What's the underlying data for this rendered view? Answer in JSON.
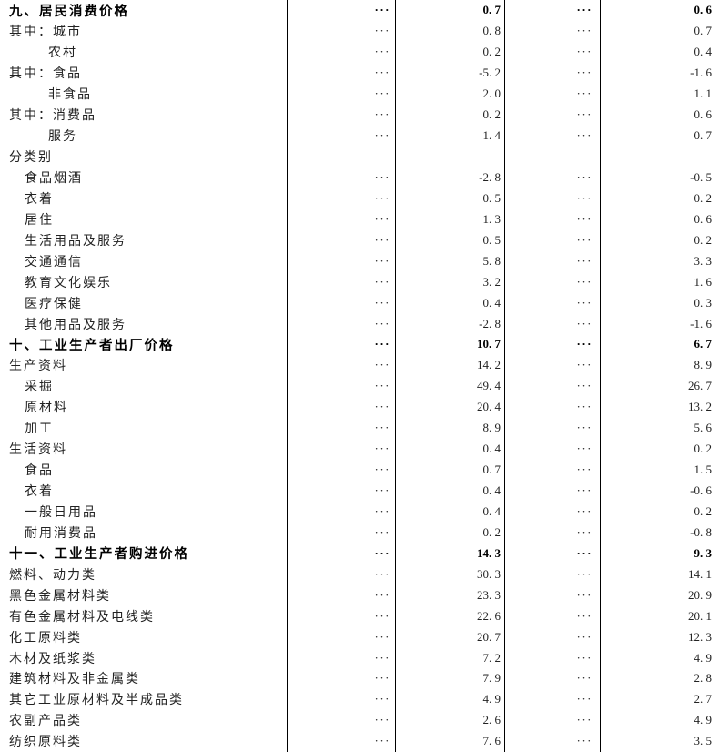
{
  "table": {
    "ellipsis": "···",
    "rows": [
      {
        "label": "九、居民消费价格",
        "level": 0,
        "bold": true,
        "dots": true,
        "v1": "0.7",
        "v2": "0.6"
      },
      {
        "label": "其中：城市",
        "level": 0,
        "bold": false,
        "dots": true,
        "v1": "0.8",
        "v2": "0.7"
      },
      {
        "label": "农村",
        "level": 2,
        "bold": false,
        "dots": true,
        "v1": "0.2",
        "v2": "0.4"
      },
      {
        "label": "其中：食品",
        "level": 0,
        "bold": false,
        "dots": true,
        "v1": "-5.2",
        "v2": "-1.6"
      },
      {
        "label": "非食品",
        "level": 2,
        "bold": false,
        "dots": true,
        "v1": "2.0",
        "v2": "1.1"
      },
      {
        "label": "其中：消费品",
        "level": 0,
        "bold": false,
        "dots": true,
        "v1": "0.2",
        "v2": "0.6"
      },
      {
        "label": "服务",
        "level": 2,
        "bold": false,
        "dots": true,
        "v1": "1.4",
        "v2": "0.7"
      },
      {
        "label": "分类别",
        "level": 0,
        "bold": false,
        "dots": false,
        "v1": null,
        "v2": null
      },
      {
        "label": "食品烟酒",
        "level": 1,
        "bold": false,
        "dots": true,
        "v1": "-2.8",
        "v2": "-0.5"
      },
      {
        "label": "衣着",
        "level": 1,
        "bold": false,
        "dots": true,
        "v1": "0.5",
        "v2": "0.2"
      },
      {
        "label": "居住",
        "level": 1,
        "bold": false,
        "dots": true,
        "v1": "1.3",
        "v2": "0.6"
      },
      {
        "label": "生活用品及服务",
        "level": 1,
        "bold": false,
        "dots": true,
        "v1": "0.5",
        "v2": "0.2"
      },
      {
        "label": "交通通信",
        "level": 1,
        "bold": false,
        "dots": true,
        "v1": "5.8",
        "v2": "3.3"
      },
      {
        "label": "教育文化娱乐",
        "level": 1,
        "bold": false,
        "dots": true,
        "v1": "3.2",
        "v2": "1.6"
      },
      {
        "label": "医疗保健",
        "level": 1,
        "bold": false,
        "dots": true,
        "v1": "0.4",
        "v2": "0.3"
      },
      {
        "label": "其他用品及服务",
        "level": 1,
        "bold": false,
        "dots": true,
        "v1": "-2.8",
        "v2": "-1.6"
      },
      {
        "label": "十、工业生产者出厂价格",
        "level": 0,
        "bold": true,
        "dots": true,
        "v1": "10.7",
        "v2": "6.7"
      },
      {
        "label": "生产资料",
        "level": 0,
        "bold": false,
        "dots": true,
        "v1": "14.2",
        "v2": "8.9"
      },
      {
        "label": "采掘",
        "level": 1,
        "bold": false,
        "dots": true,
        "v1": "49.4",
        "v2": "26.7"
      },
      {
        "label": "原材料",
        "level": 1,
        "bold": false,
        "dots": true,
        "v1": "20.4",
        "v2": "13.2"
      },
      {
        "label": "加工",
        "level": 1,
        "bold": false,
        "dots": true,
        "v1": "8.9",
        "v2": "5.6"
      },
      {
        "label": "生活资料",
        "level": 0,
        "bold": false,
        "dots": true,
        "v1": "0.4",
        "v2": "0.2"
      },
      {
        "label": "食品",
        "level": 1,
        "bold": false,
        "dots": true,
        "v1": "0.7",
        "v2": "1.5"
      },
      {
        "label": "衣着",
        "level": 1,
        "bold": false,
        "dots": true,
        "v1": "0.4",
        "v2": "-0.6"
      },
      {
        "label": "一般日用品",
        "level": 1,
        "bold": false,
        "dots": true,
        "v1": "0.4",
        "v2": "0.2"
      },
      {
        "label": "耐用消费品",
        "level": 1,
        "bold": false,
        "dots": true,
        "v1": "0.2",
        "v2": "-0.8"
      },
      {
        "label": "十一、工业生产者购进价格",
        "level": 0,
        "bold": true,
        "dots": true,
        "v1": "14.3",
        "v2": "9.3"
      },
      {
        "label": "燃料、动力类",
        "level": 0,
        "bold": false,
        "dots": true,
        "v1": "30.3",
        "v2": "14.1"
      },
      {
        "label": "黑色金属材料类",
        "level": 0,
        "bold": false,
        "dots": true,
        "v1": "23.3",
        "v2": "20.9"
      },
      {
        "label": "有色金属材料及电线类",
        "level": 0,
        "bold": false,
        "dots": true,
        "v1": "22.6",
        "v2": "20.1"
      },
      {
        "label": "化工原料类",
        "level": 0,
        "bold": false,
        "dots": true,
        "v1": "20.7",
        "v2": "12.3"
      },
      {
        "label": "木材及纸浆类",
        "level": 0,
        "bold": false,
        "dots": true,
        "v1": "7.2",
        "v2": "4.9"
      },
      {
        "label": "建筑材料及非金属类",
        "level": 0,
        "bold": false,
        "dots": true,
        "v1": "7.9",
        "v2": "2.8"
      },
      {
        "label": "其它工业原材料及半成品类",
        "level": 0,
        "bold": false,
        "dots": true,
        "v1": "4.9",
        "v2": "2.7"
      },
      {
        "label": "农副产品类",
        "level": 0,
        "bold": false,
        "dots": true,
        "v1": "2.6",
        "v2": "4.9"
      },
      {
        "label": "纺织原料类",
        "level": 0,
        "bold": false,
        "dots": true,
        "v1": "7.6",
        "v2": "3.5"
      }
    ]
  }
}
